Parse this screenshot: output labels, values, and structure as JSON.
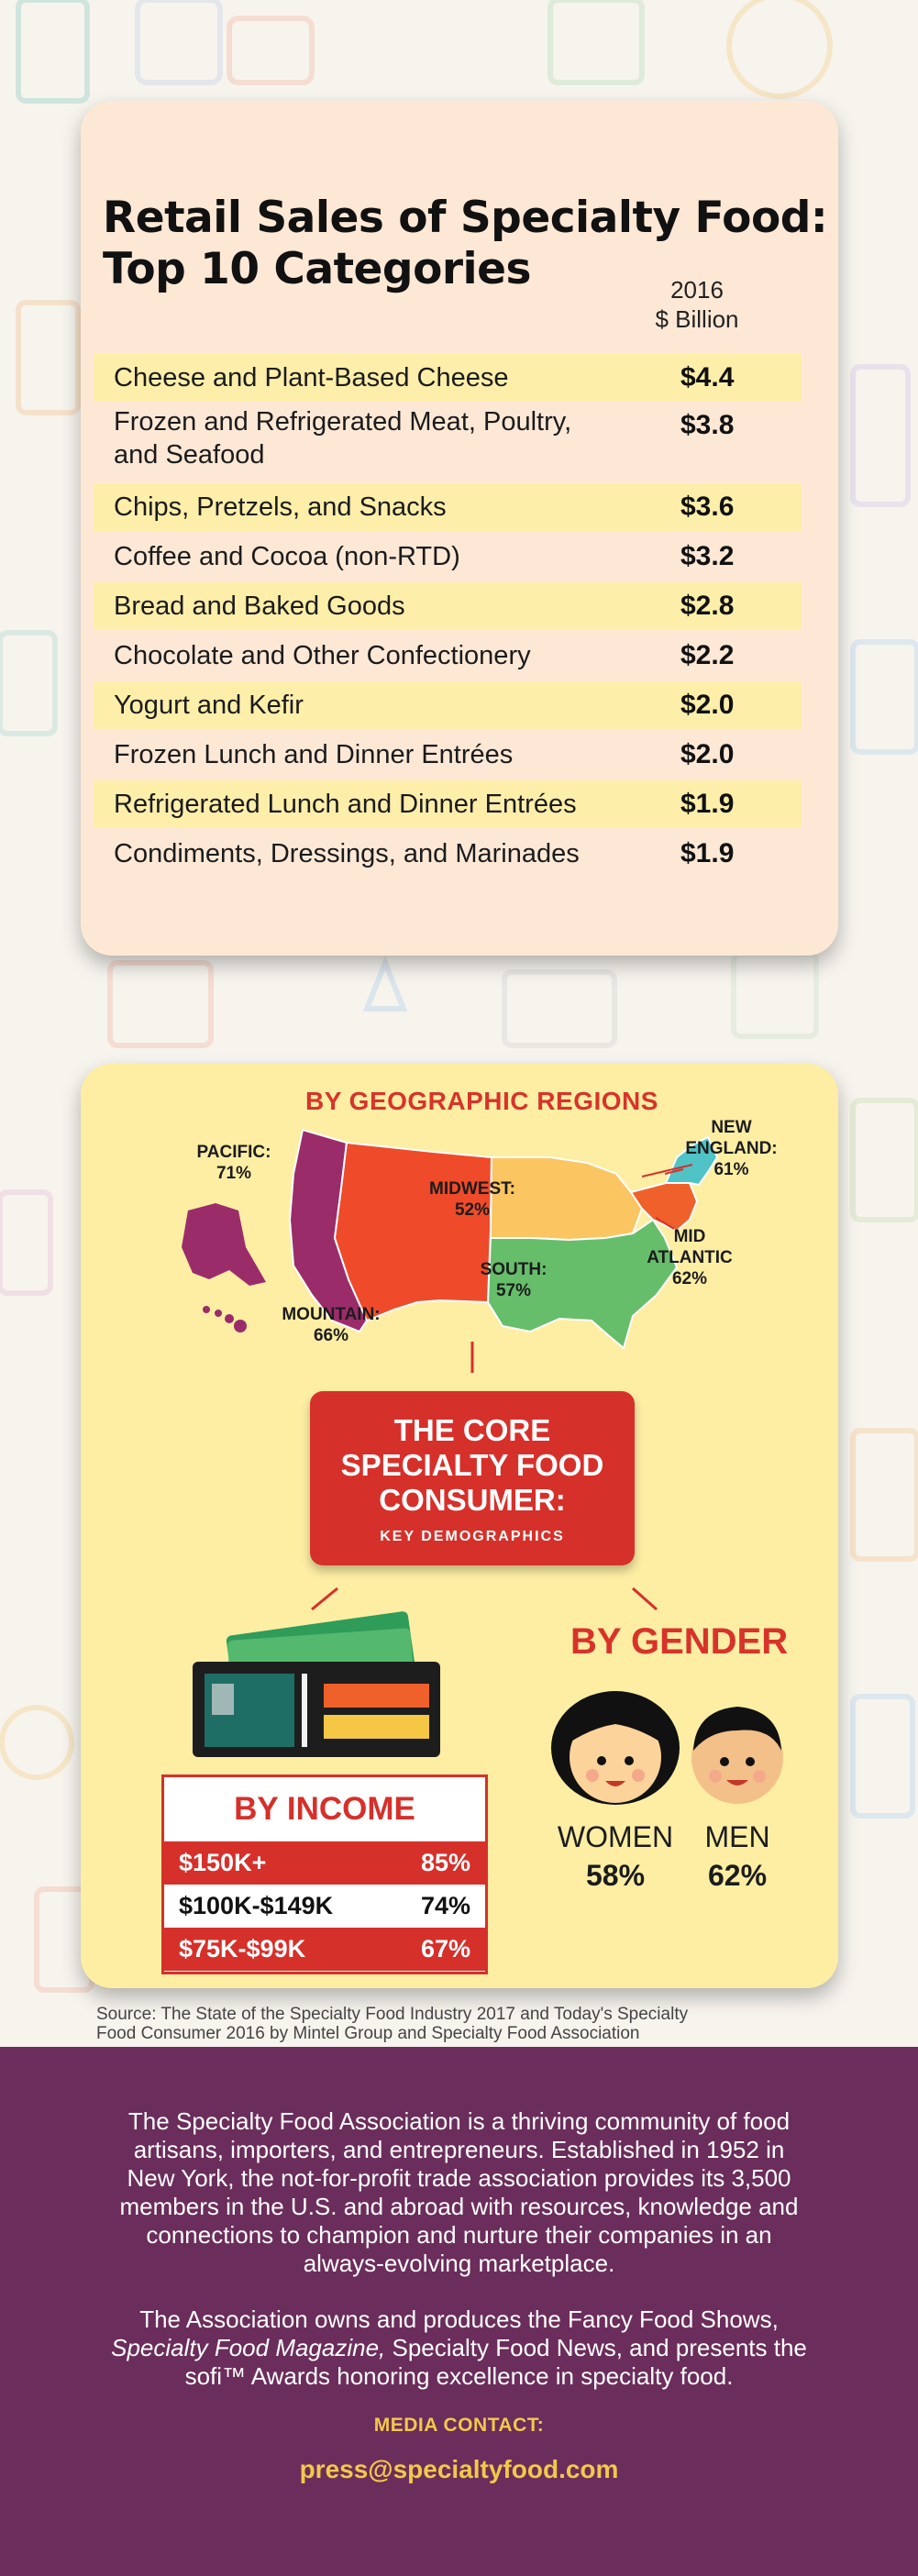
{
  "retail": {
    "title_line1": "Retail Sales of Specialty Food:",
    "title_line2": "Top 10 Categories",
    "col_year": "2016",
    "col_unit": "$ Billion",
    "rows": [
      {
        "category": "Cheese and Plant-Based Cheese",
        "value": "$4.4"
      },
      {
        "category_line1": "Frozen and Refrigerated Meat, Poultry,",
        "category_line2": "and Seafood",
        "value": "$3.8"
      },
      {
        "category": "Chips, Pretzels, and Snacks",
        "value": "$3.6"
      },
      {
        "category": "Coffee and Cocoa (non-RTD)",
        "value": "$3.2"
      },
      {
        "category": "Bread and Baked Goods",
        "value": "$2.8"
      },
      {
        "category": "Chocolate and Other Confectionery",
        "value": "$2.2"
      },
      {
        "category": "Yogurt and Kefir",
        "value": "$2.0"
      },
      {
        "category": "Frozen Lunch and Dinner Entrées",
        "value": "$2.0"
      },
      {
        "category": "Refrigerated Lunch and Dinner Entrées",
        "value": "$1.9"
      },
      {
        "category": "Condiments, Dressings, and Marinades",
        "value": "$1.9"
      }
    ]
  },
  "geo": {
    "title": "BY GEOGRAPHIC REGIONS",
    "regions": {
      "pacific": {
        "name": "PACIFIC:",
        "pct": "71%",
        "color": "#9b2c6a"
      },
      "mountain": {
        "name": "MOUNTAIN:",
        "pct": "66%",
        "color": "#ef4a2a"
      },
      "midwest": {
        "name": "MIDWEST:",
        "pct": "52%",
        "color": "#fbc562"
      },
      "south": {
        "name": "SOUTH:",
        "pct": "57%",
        "color": "#66be6a"
      },
      "new_england": {
        "name_line1": "NEW",
        "name_line2": "ENGLAND:",
        "pct": "61%",
        "color": "#4fc3c6"
      },
      "mid_atlantic": {
        "name_line1": "MID",
        "name_line2": "ATLANTIC",
        "pct": "62%",
        "color": "#f0602b"
      }
    }
  },
  "core": {
    "line1": "THE CORE",
    "line2": "SPECIALTY FOOD",
    "line3": "CONSUMER:",
    "sub": "KEY DEMOGRAPHICS"
  },
  "gender": {
    "title": "BY GENDER",
    "women_label": "WOMEN",
    "women_pct": "58%",
    "men_label": "MEN",
    "men_pct": "62%"
  },
  "income": {
    "title": "BY INCOME",
    "rows": [
      {
        "range": "$150K+",
        "pct": "85%"
      },
      {
        "range": "$100K-$149K",
        "pct": "74%"
      },
      {
        "range": "$75K-$99K",
        "pct": "67%"
      }
    ]
  },
  "source": {
    "line1": "Source: The State of the Specialty Food Industry 2017 and Today's Specialty",
    "line2": "Food Consumer 2016 by Mintel Group and Specialty Food Association"
  },
  "footer": {
    "para1_lines": [
      "The Specialty Food Association is a thriving community of food",
      "artisans, importers, and entrepreneurs. Established in 1952 in",
      "New York, the not-for-profit trade association provides its 3,500",
      "members in the U.S. and abroad with resources, knowledge and",
      "connections to champion and nurture their companies in an",
      "always-evolving marketplace."
    ],
    "para2_line1": "The Association owns and produces the Fancy Food Shows,",
    "para2_line2_italic": "Specialty Food Magazine,",
    "para2_line2_rest": " Specialty Food News, and presents the",
    "para2_line3": "sofi™ Awards honoring excellence in specialty food.",
    "media_contact_label": "MEDIA CONTACT:",
    "email": "press@specialtyfood.com"
  },
  "colors": {
    "card1_bg": "#fde8d6",
    "row_highlight": "#fdeeaa",
    "card2_bg": "#fdeea4",
    "accent_red": "#d6302b",
    "footer_bg": "#6b2d5b",
    "footer_accent": "#f2c84b"
  }
}
